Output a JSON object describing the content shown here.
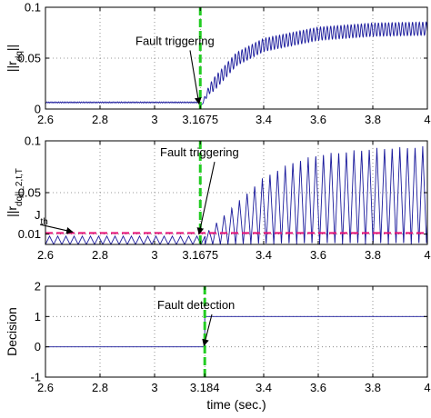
{
  "chart_data": [
    {
      "type": "line",
      "ylabel": "||r_dq||",
      "xlim": [
        2.6,
        4
      ],
      "ylim": [
        0,
        0.1
      ],
      "xticks": [
        "2.6",
        "2.8",
        "3",
        "3.1675",
        "3.4",
        "3.6",
        "3.8",
        "4"
      ],
      "xtick_values": [
        2.6,
        2.8,
        3,
        3.1675,
        3.4,
        3.6,
        3.8,
        4
      ],
      "yticks": [
        "0",
        "0.05",
        "0.1"
      ],
      "ytick_values": [
        0,
        0.05,
        0.1
      ],
      "grid": true,
      "event_line": {
        "x": 3.1675,
        "color": "#22cc22",
        "style": "dashed"
      },
      "annotations": [
        {
          "text": "Fault triggering",
          "x": 2.93,
          "y": 0.063,
          "arrow_to": [
            3.163,
            0.005
          ]
        }
      ],
      "series": [
        {
          "color": "#1a1a9c",
          "model": "residual_norm",
          "pre_fault_level": 0.0065,
          "pre_fault_ripple": 0.0006,
          "fault_time": 3.1675,
          "points": [
            [
              3.1675,
              0.0015
            ],
            [
              3.2,
              0.019
            ],
            [
              3.3,
              0.049
            ],
            [
              3.4,
              0.063
            ],
            [
              3.6,
              0.074
            ],
            [
              3.8,
              0.078
            ],
            [
              4.0,
              0.079
            ]
          ],
          "oscillation_amplitude": 0.0065,
          "oscillation_period": 0.0125
        }
      ]
    },
    {
      "type": "line",
      "ylabel": "||r_dq||_2,t,T",
      "xlim": [
        2.6,
        4
      ],
      "ylim": [
        0,
        0.1
      ],
      "xticks": [
        "2.6",
        "2.8",
        "3",
        "3.1675",
        "3.4",
        "3.6",
        "3.8",
        "4"
      ],
      "xtick_values": [
        2.6,
        2.8,
        3,
        3.1675,
        3.4,
        3.6,
        3.8,
        4
      ],
      "yticks": [
        "0.01",
        "0.05",
        "0.1"
      ],
      "ytick_values": [
        0.01,
        0.05,
        0.1
      ],
      "grid": true,
      "event_line": {
        "x": 3.1675,
        "color": "#22cc22",
        "style": "dashed"
      },
      "threshold": {
        "label": "J_th",
        "value": 0.011,
        "color": "#e6177a",
        "style": "dashed"
      },
      "annotations": [
        {
          "text": "Fault triggering",
          "x": 3.02,
          "y": 0.085,
          "arrow_to": [
            3.163,
            0.01
          ]
        },
        {
          "text": "J_th",
          "x": 2.56,
          "y": 0.0245,
          "arrow_to": [
            2.7,
            0.012
          ]
        }
      ],
      "series": [
        {
          "color": "#1a1a9c",
          "model": "sawtooth_envelope",
          "pre_fault_peak": 0.008,
          "pre_fault_period": 0.03,
          "fault_time": 3.185,
          "points": [
            [
              3.185,
              0.01
            ],
            [
              3.3,
              0.04
            ],
            [
              3.4,
              0.065
            ],
            [
              3.5,
              0.079
            ],
            [
              3.6,
              0.087
            ],
            [
              3.8,
              0.093
            ],
            [
              4.0,
              0.095
            ]
          ],
          "oscillation_period": 0.028
        }
      ]
    },
    {
      "type": "line",
      "ylabel": "Decision",
      "xlabel": "time (sec.)",
      "xlim": [
        2.6,
        4
      ],
      "ylim": [
        -1,
        2
      ],
      "xticks": [
        "2.6",
        "2.8",
        "3",
        "3.184",
        "3.4",
        "3.6",
        "3.8",
        "4"
      ],
      "xtick_values": [
        2.6,
        2.8,
        3,
        3.184,
        3.4,
        3.6,
        3.8,
        4
      ],
      "yticks": [
        "-1",
        "0",
        "1",
        "2"
      ],
      "ytick_values": [
        -1,
        0,
        1,
        2
      ],
      "grid": true,
      "event_line": {
        "x": 3.184,
        "color": "#22cc22",
        "style": "dashed"
      },
      "annotations": [
        {
          "text": "Fault detection",
          "x": 3.01,
          "y": 1.25,
          "arrow_to": [
            3.181,
            0.04
          ]
        }
      ],
      "series": [
        {
          "color": "#1a1a9c",
          "model": "step",
          "points": [
            [
              2.6,
              0
            ],
            [
              3.184,
              0
            ],
            [
              3.184,
              1
            ],
            [
              4.0,
              1
            ]
          ]
        }
      ]
    }
  ]
}
